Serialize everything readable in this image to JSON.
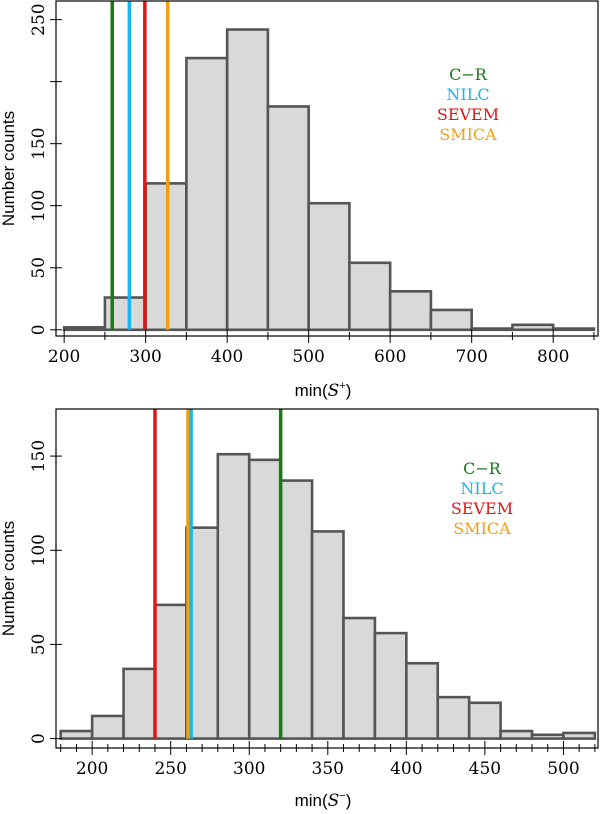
{
  "colors": {
    "C-R": "#1a7a1a",
    "NILC": "#1ab5ee",
    "SEVEM": "#e01515",
    "SMICA": "#f0a010"
  },
  "chart_data": [
    {
      "type": "bar",
      "title": "",
      "xlabel": "min(S⁺)",
      "xlabel_base": "min(",
      "xlabel_sym": "S",
      "xlabel_sup": "+",
      "xlabel_end": ")",
      "ylabel": "Number counts",
      "xlim": [
        190,
        855
      ],
      "ylim": [
        -5,
        265
      ],
      "xticks": [
        200,
        300,
        400,
        500,
        600,
        700,
        800
      ],
      "xminor": 50,
      "yticks": [
        0,
        50,
        100,
        150,
        200,
        250
      ],
      "ytick_labels": [
        "0",
        "50",
        "100",
        "150",
        "",
        "250"
      ],
      "bin_width": 50,
      "bins": [
        {
          "left": 200,
          "count": 2
        },
        {
          "left": 250,
          "count": 26
        },
        {
          "left": 300,
          "count": 118
        },
        {
          "left": 350,
          "count": 219
        },
        {
          "left": 400,
          "count": 242
        },
        {
          "left": 450,
          "count": 180
        },
        {
          "left": 500,
          "count": 102
        },
        {
          "left": 550,
          "count": 54
        },
        {
          "left": 600,
          "count": 31
        },
        {
          "left": 650,
          "count": 16
        },
        {
          "left": 700,
          "count": 1
        },
        {
          "left": 750,
          "count": 4
        },
        {
          "left": 800,
          "count": 1
        }
      ],
      "markers": [
        {
          "name": "C-R",
          "x": 259
        },
        {
          "name": "NILC",
          "x": 280
        },
        {
          "name": "SEVEM",
          "x": 299
        },
        {
          "name": "SMICA",
          "x": 327
        }
      ],
      "legend": [
        "C−R",
        "NILC",
        "SEVEM",
        "SMICA"
      ]
    },
    {
      "type": "bar",
      "title": "",
      "xlabel": "min(S⁻)",
      "xlabel_base": "min(",
      "xlabel_sym": "S",
      "xlabel_sup": "−",
      "xlabel_end": ")",
      "ylabel": "Number counts",
      "xlim": [
        177,
        522
      ],
      "ylim": [
        -5,
        175
      ],
      "xticks": [
        200,
        250,
        300,
        350,
        400,
        450,
        500
      ],
      "xminor": 10,
      "yticks": [
        0,
        50,
        100,
        150
      ],
      "ytick_labels": [
        "0",
        "50",
        "100",
        "150"
      ],
      "bin_width": 20,
      "bins": [
        {
          "left": 180,
          "count": 4
        },
        {
          "left": 200,
          "count": 12
        },
        {
          "left": 220,
          "count": 37
        },
        {
          "left": 240,
          "count": 71
        },
        {
          "left": 260,
          "count": 112
        },
        {
          "left": 280,
          "count": 151
        },
        {
          "left": 300,
          "count": 148
        },
        {
          "left": 320,
          "count": 137
        },
        {
          "left": 340,
          "count": 110
        },
        {
          "left": 360,
          "count": 64
        },
        {
          "left": 380,
          "count": 56
        },
        {
          "left": 400,
          "count": 40
        },
        {
          "left": 420,
          "count": 22
        },
        {
          "left": 440,
          "count": 19
        },
        {
          "left": 460,
          "count": 4
        },
        {
          "left": 480,
          "count": 2
        },
        {
          "left": 500,
          "count": 3
        }
      ],
      "markers": [
        {
          "name": "SEVEM",
          "x": 240
        },
        {
          "name": "SMICA",
          "x": 261
        },
        {
          "name": "NILC",
          "x": 263
        },
        {
          "name": "C-R",
          "x": 320
        }
      ],
      "legend": [
        "C−R",
        "NILC",
        "SEVEM",
        "SMICA"
      ]
    }
  ]
}
